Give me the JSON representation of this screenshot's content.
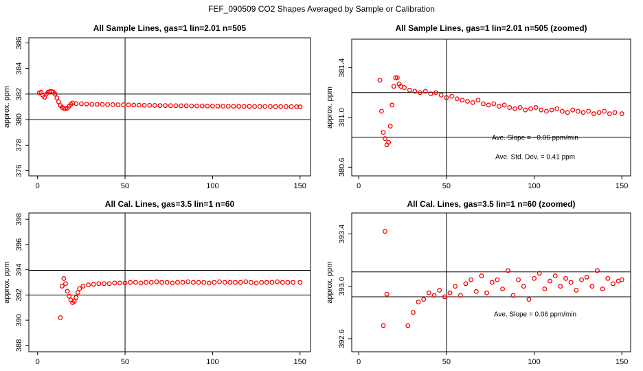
{
  "title": "FEF_090509  CO2 Shapes Averaged by Sample or Calibration",
  "chart_data": [
    {
      "type": "scatter",
      "title": "All Sample Lines, gas=1 lin=2.01 n=505",
      "ylabel": "approx. ppm",
      "color": "#ff0000",
      "xlim": [
        -5,
        156
      ],
      "ylim": [
        375.6,
        386.4
      ],
      "xticks": [
        0,
        50,
        100,
        150
      ],
      "yticks": [
        376,
        378,
        380,
        382,
        384,
        386
      ],
      "hlines": [
        382,
        380
      ],
      "vlines": [
        50
      ],
      "annotations": [],
      "x": [
        1,
        2,
        3,
        4,
        5,
        6,
        7,
        8,
        9,
        10,
        11,
        12,
        13,
        14,
        15,
        16,
        17,
        18,
        19,
        20,
        22,
        25,
        28,
        31,
        34,
        37,
        40,
        43,
        46,
        49,
        52,
        55,
        58,
        61,
        64,
        67,
        70,
        73,
        76,
        79,
        82,
        85,
        88,
        91,
        94,
        97,
        100,
        103,
        106,
        109,
        112,
        115,
        118,
        121,
        124,
        127,
        130,
        133,
        136,
        139,
        142,
        145,
        148,
        150
      ],
      "values": [
        382.1,
        382.15,
        381.9,
        381.75,
        382.0,
        382.15,
        382.2,
        382.2,
        382.15,
        382.0,
        381.7,
        381.4,
        381.1,
        380.95,
        380.88,
        380.85,
        380.9,
        381.05,
        381.2,
        381.3,
        381.25,
        381.24,
        381.22,
        381.2,
        381.2,
        381.19,
        381.18,
        381.17,
        381.16,
        381.16,
        381.15,
        381.14,
        381.13,
        381.12,
        381.12,
        381.11,
        381.1,
        381.1,
        381.09,
        381.09,
        381.08,
        381.08,
        381.07,
        381.07,
        381.07,
        381.06,
        381.06,
        381.06,
        381.05,
        381.05,
        381.05,
        381.04,
        381.04,
        381.04,
        381.03,
        381.03,
        381.03,
        381.03,
        381.02,
        381.02,
        381.02,
        381.02,
        381.01,
        381.0
      ]
    },
    {
      "type": "scatter",
      "title": "All Sample Lines, gas=1 lin=2.01 n=505 (zoomed)",
      "ylabel": "approx. ppm",
      "color": "#ff0000",
      "xlim": [
        -4,
        155
      ],
      "ylim": [
        380.53,
        381.63
      ],
      "xticks": [
        0,
        50,
        100,
        150
      ],
      "yticks": [
        380.6,
        {
          "value": 381,
          "label": "381.0"
        },
        381.4
      ],
      "hlines": [
        381.2,
        380.84
      ],
      "vlines": [
        50
      ],
      "annotations": [
        "Ave. Slope = −0.06  ppm/min",
        "Ave. Std. Dev. = 0.41  ppm"
      ],
      "x": [
        12,
        13,
        14,
        15,
        16,
        17,
        18,
        19,
        20,
        21,
        22,
        23,
        24,
        26,
        29,
        32,
        35,
        38,
        41,
        44,
        47,
        50,
        53,
        56,
        59,
        62,
        65,
        68,
        71,
        74,
        77,
        80,
        83,
        86,
        89,
        92,
        95,
        98,
        101,
        104,
        107,
        110,
        113,
        116,
        119,
        122,
        125,
        128,
        131,
        134,
        137,
        140,
        143,
        146,
        150
      ],
      "values": [
        381.3,
        381.05,
        380.88,
        380.83,
        380.78,
        380.8,
        380.93,
        381.1,
        381.25,
        381.32,
        381.32,
        381.27,
        381.25,
        381.24,
        381.22,
        381.21,
        381.2,
        381.21,
        381.19,
        381.2,
        381.18,
        381.16,
        381.17,
        381.15,
        381.14,
        381.13,
        381.12,
        381.14,
        381.11,
        381.1,
        381.11,
        381.09,
        381.1,
        381.08,
        381.07,
        381.08,
        381.06,
        381.07,
        381.08,
        381.06,
        381.05,
        381.06,
        381.07,
        381.05,
        381.04,
        381.06,
        381.05,
        381.04,
        381.05,
        381.03,
        381.04,
        381.05,
        381.03,
        381.04,
        381.03
      ]
    },
    {
      "type": "scatter",
      "title": "All Cal. Lines, gas=3.5 lin=1 n=60",
      "ylabel": "approx. ppm",
      "color": "#ff0000",
      "xlim": [
        -5,
        156
      ],
      "ylim": [
        387.5,
        398.5
      ],
      "xticks": [
        0,
        50,
        100,
        150
      ],
      "yticks": [
        388,
        390,
        392,
        394,
        396,
        398
      ],
      "hlines": [
        393.95,
        392
      ],
      "vlines": [
        50
      ],
      "annotations": [],
      "x": [
        13,
        14,
        15,
        16,
        17,
        18,
        19,
        20,
        21,
        22,
        23,
        24,
        26,
        29,
        32,
        35,
        38,
        41,
        44,
        47,
        50,
        53,
        56,
        59,
        62,
        65,
        68,
        71,
        74,
        77,
        80,
        83,
        86,
        89,
        92,
        95,
        98,
        101,
        104,
        107,
        110,
        113,
        116,
        119,
        122,
        125,
        128,
        131,
        134,
        137,
        140,
        143,
        146,
        150
      ],
      "values": [
        390.2,
        392.7,
        393.3,
        392.9,
        392.3,
        391.9,
        391.6,
        391.4,
        391.5,
        391.8,
        392.2,
        392.5,
        392.7,
        392.8,
        392.85,
        392.9,
        392.9,
        392.9,
        392.95,
        392.95,
        392.95,
        393.0,
        393.0,
        392.95,
        393.0,
        393.0,
        393.05,
        393.0,
        393.0,
        392.95,
        393.0,
        393.0,
        393.05,
        393.0,
        393.0,
        393.0,
        392.95,
        393.0,
        393.05,
        393.0,
        393.0,
        393.0,
        393.0,
        393.05,
        393.0,
        392.95,
        393.0,
        393.0,
        393.0,
        393.05,
        393.0,
        393.0,
        393.0,
        393.0
      ]
    },
    {
      "type": "scatter",
      "title": "All Cal. Lines, gas=3.5 lin=1 n=60 (zoomed)",
      "ylabel": "approx. ppm",
      "color": "#ff0000",
      "xlim": [
        -4,
        155
      ],
      "ylim": [
        392.5,
        393.56
      ],
      "xticks": [
        0,
        50,
        100,
        150
      ],
      "yticks": [
        392.6,
        {
          "value": 393,
          "label": "393.0"
        },
        393.4
      ],
      "hlines": [
        393.11,
        392.92
      ],
      "vlines": [
        50
      ],
      "annotations": [
        "Ave. Slope = 0.06  ppm/min"
      ],
      "x": [
        14,
        15,
        16,
        28,
        31,
        34,
        37,
        40,
        43,
        46,
        49,
        52,
        55,
        58,
        61,
        64,
        67,
        70,
        73,
        76,
        79,
        82,
        85,
        88,
        91,
        94,
        97,
        100,
        103,
        106,
        109,
        112,
        115,
        118,
        121,
        124,
        127,
        130,
        133,
        136,
        139,
        142,
        145,
        148,
        150
      ],
      "values": [
        392.7,
        393.42,
        392.94,
        392.7,
        392.8,
        392.88,
        392.9,
        392.95,
        392.93,
        392.97,
        392.92,
        392.95,
        393.0,
        392.93,
        393.02,
        393.05,
        392.96,
        393.08,
        392.95,
        393.03,
        393.05,
        392.98,
        393.12,
        392.93,
        393.05,
        393.0,
        392.9,
        393.06,
        393.1,
        392.98,
        393.04,
        393.08,
        393.0,
        393.06,
        393.03,
        392.97,
        393.05,
        393.07,
        393.0,
        393.12,
        392.98,
        393.06,
        393.02,
        393.04,
        393.05
      ]
    }
  ]
}
